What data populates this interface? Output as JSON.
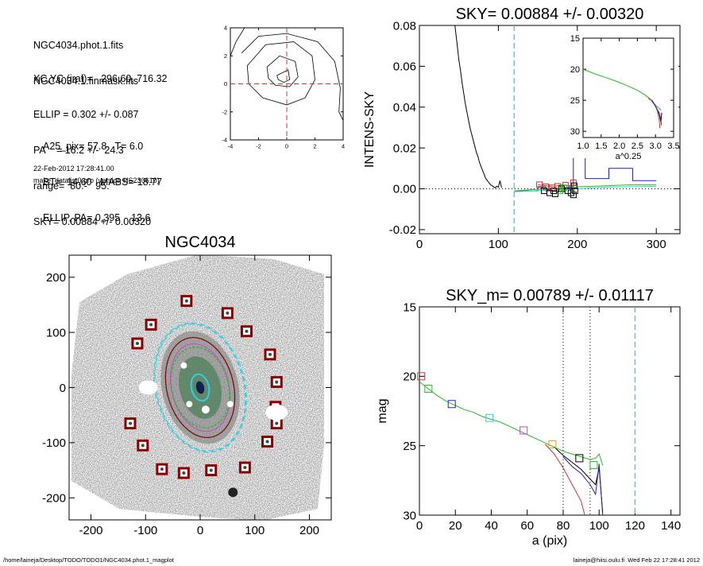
{
  "info": {
    "lines_a": [
      "NGC4034.phot.1.fits",
      "NGC4034.1.finmask.fits"
    ],
    "lines_b": [
      "XC,YC (iraf)=   296.60, 716.32",
      "ELLIP = 0.302 +/- 0.087",
      "PA    = 16.2 +/-  24.3",
      "range=  80.-   95.",
      "SKY= 0.00884 +/- 0.00320"
    ],
    "lines_c": [
      "A25_pix= 57.8   T= 6.0",
      "BT=  14.60   MABS=-18.77",
      "ELLIP, PA= 0.395    13.6"
    ],
    "date": "22-Feb-2012 17:28:41.00",
    "program": "make_datalist0.pro (version HS230610)"
  },
  "footer": {
    "left": "/home/laineja/Desktop/TODO/TODO1/NGC4034.phot.1_magplot",
    "right": "laineja@hiisi.oulu.fi  Wed Feb 22 17:28:41 2012"
  },
  "colors": {
    "red": "#e03030",
    "blue": "#2020c0",
    "green": "#20c020",
    "cyan": "#30d0e0",
    "magenta": "#d040d0",
    "orange": "#e0a020",
    "darkred": "#800000"
  },
  "chart_data": [
    {
      "id": "contour",
      "type": "line",
      "title": "",
      "xlim": [
        -4,
        4
      ],
      "ylim": [
        -4,
        4
      ],
      "xticks": [
        -4,
        -2,
        0,
        2,
        4
      ],
      "yticks": [
        -4,
        -2,
        0,
        2,
        4
      ],
      "xtick_labels": [
        "-4",
        "-2",
        "0",
        "2",
        "4"
      ],
      "ytick_labels": [
        "-4",
        "-2",
        "0",
        "2",
        "4"
      ],
      "contours": [
        [
          [
            -0.7,
            0.6
          ],
          [
            0.1,
            1.0
          ],
          [
            0.2,
            0.3
          ],
          [
            -0.2,
            0.1
          ],
          [
            -0.6,
            0.3
          ],
          [
            -0.7,
            0.6
          ]
        ],
        [
          [
            -1.4,
            1.2
          ],
          [
            -0.5,
            2.0
          ],
          [
            0.6,
            1.6
          ],
          [
            0.8,
            0.5
          ],
          [
            0.2,
            -0.2
          ],
          [
            -0.8,
            -0.1
          ],
          [
            -1.3,
            0.4
          ],
          [
            -1.4,
            1.2
          ]
        ],
        [
          [
            -2.8,
            1.3
          ],
          [
            -1.5,
            2.8
          ],
          [
            0.5,
            3.0
          ],
          [
            1.8,
            2.0
          ],
          [
            2.0,
            0.3
          ],
          [
            1.3,
            -1.0
          ],
          [
            0.0,
            -1.5
          ],
          [
            -1.7,
            -1.0
          ],
          [
            -2.7,
            0.0
          ],
          [
            -2.8,
            1.3
          ]
        ],
        [
          [
            -3.2,
            2.2
          ],
          [
            -2.0,
            3.4
          ],
          [
            0.0,
            3.6
          ],
          [
            2.2,
            3.0
          ],
          [
            3.4,
            1.6
          ],
          [
            3.8,
            -0.3
          ],
          [
            3.7,
            -2.0
          ],
          [
            4.0,
            -2.6
          ]
        ],
        [
          [
            -3.0,
            4.0
          ],
          [
            -3.6,
            3.0
          ],
          [
            -4.0,
            2.0
          ]
        ]
      ],
      "center_lines": {
        "x": 0,
        "y": 0
      }
    },
    {
      "id": "sky",
      "type": "line",
      "title": "SKY= 0.00884 +/- 0.00320",
      "xlabel": "",
      "ylabel": "INTENS-SKY",
      "xlim": [
        0,
        330
      ],
      "ylim": [
        -0.022,
        0.08
      ],
      "xticks": [
        0,
        100,
        200,
        300
      ],
      "yticks": [
        -0.02,
        0.0,
        0.02,
        0.04,
        0.06,
        0.08
      ],
      "xtick_labels": [
        "0",
        "100",
        "200",
        "300"
      ],
      "ytick_labels": [
        "-0.02",
        "0.00",
        "0.02",
        "0.04",
        "0.06",
        "0.08"
      ],
      "vline_cyan": 120,
      "series": [
        {
          "color": "black",
          "x": [
            45,
            48,
            50,
            52,
            54,
            56,
            58,
            60,
            62,
            64,
            66,
            68,
            70,
            72,
            74,
            76,
            78,
            80,
            82,
            84,
            86,
            88,
            90,
            92,
            94,
            96,
            98,
            100,
            102,
            104
          ],
          "y": [
            0.08,
            0.07,
            0.063,
            0.058,
            0.052,
            0.047,
            0.042,
            0.038,
            0.034,
            0.03,
            0.027,
            0.024,
            0.021,
            0.018,
            0.016,
            0.013,
            0.011,
            0.009,
            0.007,
            0.005,
            0.004,
            0.003,
            0.002,
            0.0015,
            0.001,
            0.0005,
            0.0012,
            0.0008,
            0.004,
            0.0005
          ]
        },
        {
          "color": "blue",
          "x": [
            120,
            130,
            150,
            150,
            160,
            160,
            175,
            175,
            190,
            190,
            195,
            195,
            210,
            210,
            240,
            240,
            270,
            270,
            300
          ],
          "y": [
            -0.001,
            -0.001,
            -0.001,
            0.001,
            0.001,
            -0.001,
            -0.001,
            0.0,
            0.0,
            0.001,
            0.001,
            0.033,
            0.033,
            0.005,
            0.005,
            0.01,
            0.01,
            0.004,
            0.004
          ]
        },
        {
          "color": "red",
          "x": [
            150,
            160,
            170,
            180,
            190,
            200
          ],
          "y": [
            0.002,
            0.0015,
            0.001,
            0.002,
            0.0015,
            0.002
          ]
        },
        {
          "color": "green",
          "x": [
            120,
            140,
            160,
            180,
            200,
            220,
            240,
            270,
            300
          ],
          "y": [
            -0.001,
            -0.0005,
            0.0,
            0.0005,
            0.001,
            0.0012,
            0.0015,
            0.002,
            0.002
          ]
        },
        {
          "color": "cyan",
          "x": [
            120,
            140,
            160,
            180,
            200,
            220,
            240,
            270,
            300
          ],
          "y": [
            -0.0015,
            -0.001,
            -0.0008,
            -0.0005,
            0.0,
            0.0005,
            0.0008,
            0.001,
            0.0012
          ]
        }
      ],
      "markers": [
        {
          "x": 152,
          "y": 0.002,
          "color": "red"
        },
        {
          "x": 160,
          "y": 0.001,
          "color": "red"
        },
        {
          "x": 168,
          "y": 0.0005,
          "color": "red"
        },
        {
          "x": 175,
          "y": 0.0012,
          "color": "red"
        },
        {
          "x": 185,
          "y": 0.0018,
          "color": "red"
        },
        {
          "x": 195,
          "y": 0.003,
          "color": "red"
        },
        {
          "x": 158,
          "y": -0.001,
          "color": "black"
        },
        {
          "x": 165,
          "y": -0.002,
          "color": "black"
        },
        {
          "x": 170,
          "y": -0.001,
          "color": "black"
        },
        {
          "x": 180,
          "y": 0.0,
          "color": "black"
        },
        {
          "x": 188,
          "y": -0.001,
          "color": "black"
        },
        {
          "x": 192,
          "y": -0.002,
          "color": "black"
        },
        {
          "x": 195,
          "y": -0.003,
          "color": "black"
        },
        {
          "x": 197,
          "y": -0.001,
          "color": "black"
        },
        {
          "x": 196,
          "y": 0.0015,
          "color": "black"
        },
        {
          "x": 172,
          "y": -0.0025,
          "color": "black"
        },
        {
          "x": 178,
          "y": -0.001,
          "color": "green"
        },
        {
          "x": 183,
          "y": 0.0005,
          "color": "green"
        }
      ]
    },
    {
      "id": "inset",
      "type": "line",
      "title": "",
      "xlabel": "a^0.25",
      "ylabel": "",
      "xlim": [
        1.0,
        3.5
      ],
      "ylim": [
        31,
        15
      ],
      "xticks": [
        1.0,
        1.5,
        2.0,
        2.5,
        3.0,
        3.5
      ],
      "yticks": [
        15,
        20,
        25,
        30
      ],
      "xtick_labels": [
        "1.0",
        "1.5",
        "2.0",
        "2.5",
        "3.0",
        "3.5"
      ],
      "ytick_labels": [
        "15",
        "20",
        "25",
        "30"
      ],
      "series": [
        {
          "color": "green",
          "x": [
            1.0,
            1.3,
            1.6,
            1.9,
            2.2,
            2.5,
            2.7,
            2.9,
            3.0,
            3.1,
            3.15
          ],
          "y": [
            20.0,
            20.7,
            21.3,
            21.9,
            22.6,
            23.4,
            24.1,
            25.0,
            25.8,
            26.3,
            26.6
          ]
        },
        {
          "color": "black",
          "x": [
            2.9,
            3.0,
            3.05,
            3.1,
            3.15,
            3.17
          ],
          "y": [
            25.1,
            25.9,
            26.6,
            27.2,
            28.5,
            27.0
          ]
        },
        {
          "color": "red",
          "x": [
            2.8,
            2.9,
            3.0,
            3.05,
            3.1,
            3.12
          ],
          "y": [
            24.7,
            25.1,
            25.9,
            26.7,
            28.0,
            29.5
          ]
        },
        {
          "color": "blue",
          "x": [
            2.9,
            3.0,
            3.1,
            3.15,
            3.16
          ],
          "y": [
            25.0,
            26.0,
            27.0,
            28.2,
            29.0
          ]
        }
      ]
    },
    {
      "id": "image",
      "type": "scatter",
      "title": "NGC4034",
      "xlim": [
        -240,
        240
      ],
      "ylim": [
        -240,
        240
      ],
      "xticks": [
        -200,
        -100,
        0,
        100,
        200
      ],
      "yticks": [
        -200,
        -100,
        0,
        100,
        200
      ],
      "xtick_labels": [
        "-200",
        "-100",
        "0",
        "100",
        "200"
      ],
      "ytick_labels": [
        "-200",
        "-100",
        "0",
        "100",
        "200"
      ],
      "ellipses": [
        {
          "a": 75,
          "b": 52,
          "color": "#20c020"
        },
        {
          "a": 118,
          "b": 80,
          "color": "#30d0e0"
        },
        {
          "a": 120,
          "b": 82,
          "color": "#30d0e0"
        }
      ],
      "squares": [
        [
          -25,
          157
        ],
        [
          50,
          135
        ],
        [
          -90,
          114
        ],
        [
          85,
          102
        ],
        [
          -115,
          80
        ],
        [
          128,
          60
        ],
        [
          140,
          10
        ],
        [
          -128,
          -65
        ],
        [
          138,
          -35
        ],
        [
          140,
          -65
        ],
        [
          -105,
          -105
        ],
        [
          123,
          -98
        ],
        [
          -70,
          -148
        ],
        [
          -30,
          -155
        ],
        [
          20,
          -150
        ],
        [
          82,
          -145
        ]
      ]
    },
    {
      "id": "mag",
      "type": "line",
      "title": "SKY_m=  0.00789 +/- 0.01117",
      "xlabel": "a (pix)",
      "ylabel": "mag",
      "xlim": [
        0,
        145
      ],
      "ylim": [
        30,
        15
      ],
      "xticks": [
        0,
        20,
        40,
        60,
        80,
        100,
        120,
        140
      ],
      "yticks": [
        15,
        20,
        25,
        30
      ],
      "xtick_labels": [
        "0",
        "20",
        "40",
        "60",
        "80",
        "100",
        "120",
        "140"
      ],
      "ytick_labels": [
        "15",
        "20",
        "25",
        "30"
      ],
      "vlines_dotted": [
        80,
        95
      ],
      "vline_cyan": 120,
      "series": [
        {
          "color": "green",
          "x": [
            0,
            5,
            10,
            15,
            20,
            25,
            30,
            35,
            40,
            45,
            50,
            55,
            60,
            65,
            70,
            75,
            80,
            85,
            90,
            95,
            98,
            100,
            102
          ],
          "y": [
            20.4,
            20.9,
            21.4,
            21.8,
            22.1,
            22.4,
            22.6,
            22.9,
            23.1,
            23.3,
            23.6,
            23.9,
            24.2,
            24.5,
            24.8,
            25.1,
            25.4,
            25.6,
            25.8,
            26.0,
            25.9,
            25.6,
            26.4
          ]
        },
        {
          "color": "black",
          "x": [
            75,
            80,
            85,
            90,
            95,
            98,
            100,
            102
          ],
          "y": [
            25.1,
            25.7,
            26.2,
            26.7,
            27.4,
            27.8,
            26.6,
            29.8
          ]
        },
        {
          "color": "red",
          "x": [
            70,
            75,
            80,
            85,
            90,
            92
          ],
          "y": [
            24.9,
            25.6,
            26.6,
            27.8,
            29.0,
            30.0
          ]
        },
        {
          "color": "blue",
          "x": [
            80,
            85,
            90,
            95,
            98,
            100,
            102
          ],
          "y": [
            25.8,
            26.5,
            27.0,
            27.8,
            28.5,
            26.3,
            30.0
          ]
        }
      ],
      "markers": [
        {
          "x": 1,
          "y": 20.0,
          "color": "red"
        },
        {
          "x": 5,
          "y": 20.9,
          "color": "green"
        },
        {
          "x": 18,
          "y": 22.0,
          "color": "blue"
        },
        {
          "x": 39,
          "y": 23.0,
          "color": "cyan"
        },
        {
          "x": 58,
          "y": 23.9,
          "color": "magenta"
        },
        {
          "x": 74,
          "y": 24.9,
          "color": "orange"
        },
        {
          "x": 89,
          "y": 25.9,
          "color": "black"
        },
        {
          "x": 97,
          "y": 26.4,
          "color": "green"
        }
      ]
    }
  ]
}
